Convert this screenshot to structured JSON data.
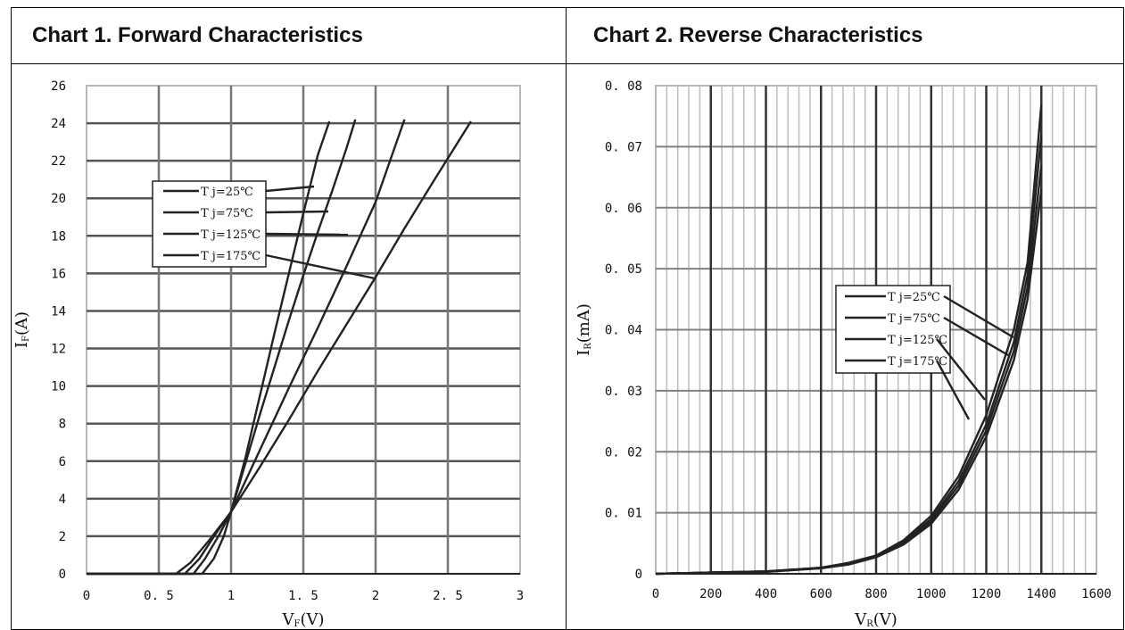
{
  "chart_data": [
    {
      "type": "line",
      "title": "Chart 1. Forward Characteristics",
      "xlabel": "V",
      "xlabel_sub": "F",
      "xlabel_unit": "(V)",
      "ylabel": "I",
      "ylabel_sub": "F",
      "ylabel_unit": "(A)",
      "xlim": [
        0,
        3
      ],
      "ylim": [
        0,
        26
      ],
      "x_ticks": [
        "0",
        "0. 5",
        "1",
        "1. 5",
        "2",
        "2. 5",
        "3"
      ],
      "y_ticks": [
        "0",
        "2",
        "4",
        "6",
        "8",
        "10",
        "12",
        "14",
        "16",
        "18",
        "20",
        "22",
        "24",
        "26"
      ],
      "grid": true,
      "legend_position": "upper-left",
      "series": [
        {
          "name": "T j=25℃",
          "x": [
            0.8,
            0.88,
            0.95,
            1.0,
            1.1,
            1.2,
            1.3,
            1.4,
            1.5,
            1.6,
            1.68
          ],
          "y": [
            0,
            0.8,
            2.0,
            3.3,
            6.2,
            9.5,
            12.8,
            16.0,
            19.2,
            22.3,
            24.1
          ]
        },
        {
          "name": "T j=75℃",
          "x": [
            0.74,
            0.82,
            0.92,
            1.0,
            1.1,
            1.2,
            1.3,
            1.4,
            1.5,
            1.6,
            1.7,
            1.8,
            1.86
          ],
          "y": [
            0,
            0.8,
            2.1,
            3.3,
            5.9,
            8.5,
            11.0,
            13.5,
            15.9,
            18.2,
            20.4,
            22.7,
            24.2
          ]
        },
        {
          "name": "T j=125℃",
          "x": [
            0.68,
            0.78,
            0.9,
            1.0,
            1.2,
            1.4,
            1.6,
            1.8,
            2.0,
            2.2
          ],
          "y": [
            0,
            0.8,
            2.2,
            3.3,
            6.6,
            9.9,
            13.1,
            16.4,
            19.8,
            24.2
          ]
        },
        {
          "name": "T j=175℃",
          "x": [
            0.62,
            0.72,
            0.85,
            1.0,
            1.2,
            1.4,
            1.6,
            1.8,
            2.0,
            2.2,
            2.4,
            2.66
          ],
          "y": [
            0,
            0.6,
            1.8,
            3.3,
            5.7,
            8.2,
            10.8,
            13.3,
            15.8,
            18.4,
            20.9,
            24.1
          ]
        }
      ]
    },
    {
      "type": "line",
      "title": "Chart 2. Reverse Characteristics",
      "xlabel": "V",
      "xlabel_sub": "R",
      "xlabel_unit": "(V)",
      "ylabel": "I",
      "ylabel_sub": "R",
      "ylabel_unit": "(mA)",
      "xlim": [
        0,
        1600
      ],
      "ylim": [
        0,
        0.08
      ],
      "x_ticks": [
        "0",
        "200",
        "400",
        "600",
        "800",
        "1000",
        "1200",
        "1400",
        "1600"
      ],
      "y_ticks": [
        "0",
        "0. 01",
        "0. 02",
        "0. 03",
        "0. 04",
        "0. 05",
        "0. 06",
        "0. 07",
        "0. 08"
      ],
      "grid": true,
      "legend_position": "center",
      "series": [
        {
          "name": "T j=25℃",
          "x": [
            0,
            200,
            400,
            600,
            700,
            800,
            900,
            1000,
            1100,
            1200,
            1300,
            1350,
            1400
          ],
          "y": [
            0,
            0.0002,
            0.0004,
            0.001,
            0.0018,
            0.003,
            0.0055,
            0.0095,
            0.016,
            0.026,
            0.04,
            0.051,
            0.077
          ]
        },
        {
          "name": "T j=75℃",
          "x": [
            0,
            200,
            400,
            600,
            700,
            800,
            900,
            1000,
            1100,
            1200,
            1300,
            1350,
            1400
          ],
          "y": [
            0,
            0.0002,
            0.0004,
            0.001,
            0.0017,
            0.0029,
            0.0052,
            0.009,
            0.0152,
            0.0245,
            0.038,
            0.049,
            0.072
          ]
        },
        {
          "name": "T j=125℃",
          "x": [
            0,
            200,
            400,
            600,
            700,
            800,
            900,
            1000,
            1100,
            1200,
            1300,
            1350,
            1400
          ],
          "y": [
            0,
            0.0002,
            0.0004,
            0.0009,
            0.0016,
            0.0028,
            0.005,
            0.0086,
            0.0145,
            0.0235,
            0.0365,
            0.047,
            0.067
          ]
        },
        {
          "name": "T j=175℃",
          "x": [
            0,
            200,
            400,
            600,
            700,
            800,
            900,
            1000,
            1100,
            1200,
            1300,
            1350,
            1400
          ],
          "y": [
            0,
            0.0002,
            0.0003,
            0.0009,
            0.0015,
            0.0027,
            0.0048,
            0.0082,
            0.0138,
            0.0225,
            0.035,
            0.045,
            0.063
          ]
        }
      ]
    }
  ]
}
